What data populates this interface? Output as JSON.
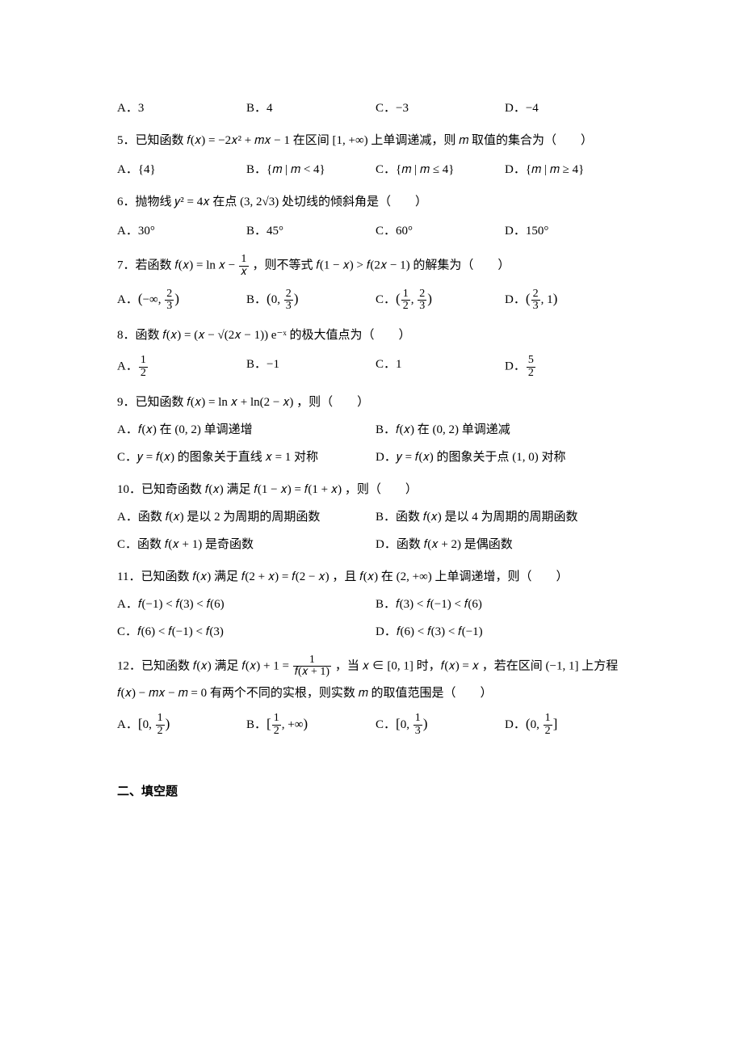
{
  "q4": {
    "A": "A．3",
    "B": "B．4",
    "C": "C．−3",
    "D": "D．−4"
  },
  "q5": {
    "stem": "5．已知函数 𝑓(𝑥) = −2𝑥² + 𝑚𝑥 − 1 在区间 [1, +∞) 上单调递减，则 𝑚 取值的集合为（　　）",
    "A": "A．{4}",
    "B": "B．{𝑚 | 𝑚 < 4}",
    "C": "C．{𝑚 | 𝑚 ≤ 4}",
    "D": "D．{𝑚 | 𝑚 ≥ 4}"
  },
  "q6": {
    "stem": "6．抛物线 𝑦² = 4𝑥 在点 (3, 2√3) 处切线的倾斜角是（　　）",
    "A": "A．30°",
    "B": "B．45°",
    "C": "C．60°",
    "D": "D．150°"
  },
  "q7": {
    "stem_prefix": "7．若函数 𝑓(𝑥) = ln 𝑥 − ",
    "stem_suffix": " ，则不等式 𝑓(1 − 𝑥) > 𝑓(2𝑥 − 1) 的解集为（　　）",
    "frac_num": "1",
    "frac_den": "𝑥",
    "A_pre": "A．",
    "A_a": "−∞",
    "A_b_num": "2",
    "A_b_den": "3",
    "B_pre": "B．",
    "B_a": "0",
    "B_b_num": "2",
    "B_b_den": "3",
    "C_pre": "C．",
    "C_a_num": "1",
    "C_a_den": "2",
    "C_b_num": "2",
    "C_b_den": "3",
    "D_pre": "D．",
    "D_a_num": "2",
    "D_a_den": "3",
    "D_b": "1"
  },
  "q8": {
    "stem": "8．函数 𝑓(𝑥) = (𝑥 − √(2𝑥 − 1)) e⁻ˣ 的极大值点为（　　）",
    "A_pre": "A．",
    "A_num": "1",
    "A_den": "2",
    "B": "B．−1",
    "C": "C．1",
    "D_pre": "D．",
    "D_num": "5",
    "D_den": "2"
  },
  "q9": {
    "stem": "9．已知函数 𝑓(𝑥) = ln 𝑥 + ln(2 − 𝑥) ，则（　　）",
    "A": "A．𝑓(𝑥) 在 (0, 2) 单调递增",
    "B": "B．𝑓(𝑥) 在 (0, 2) 单调递减",
    "C": "C．𝑦 = 𝑓(𝑥) 的图象关于直线 𝑥 = 1 对称",
    "D": "D．𝑦 = 𝑓(𝑥) 的图象关于点 (1, 0) 对称"
  },
  "q10": {
    "stem": "10．已知奇函数 𝑓(𝑥) 满足 𝑓(1 − 𝑥) = 𝑓(1 + 𝑥) ，则（　　）",
    "A": "A．函数 𝑓(𝑥) 是以 2 为周期的周期函数",
    "B": "B．函数 𝑓(𝑥) 是以 4 为周期的周期函数",
    "C": "C．函数 𝑓(𝑥 + 1) 是奇函数",
    "D": "D．函数 𝑓(𝑥 + 2) 是偶函数"
  },
  "q11": {
    "stem": "11．已知函数 𝑓(𝑥) 满足 𝑓(2 + 𝑥) = 𝑓(2 − 𝑥) ，且 𝑓(𝑥) 在 (2, +∞) 上单调递增，则（　　）",
    "A": "A．𝑓(−1) < 𝑓(3) < 𝑓(6)",
    "B": "B．𝑓(3) < 𝑓(−1) < 𝑓(6)",
    "C": "C．𝑓(6) < 𝑓(−1) < 𝑓(3)",
    "D": "D．𝑓(6) < 𝑓(3) < 𝑓(−1)"
  },
  "q12": {
    "stem_prefix": "12．已知函数 𝑓(𝑥) 满足 𝑓(𝑥) + 1 = ",
    "frac_num": "1",
    "frac_den": "𝑓(𝑥 + 1)",
    "stem_suffix": " ，当 𝑥 ∈ [0, 1] 时，𝑓(𝑥) = 𝑥 ，若在区间 (−1, 1] 上方程",
    "stem_line2": "𝑓(𝑥) − 𝑚𝑥 − 𝑚 = 0 有两个不同的实根，则实数 𝑚 的取值范围是（　　）",
    "A_pre": "A．",
    "A_a": "0",
    "A_b_num": "1",
    "A_b_den": "2",
    "B_pre": "B．",
    "B_a_num": "1",
    "B_a_den": "2",
    "B_b": "+∞",
    "C_pre": "C．",
    "C_a": "0",
    "C_b_num": "1",
    "C_b_den": "3",
    "D_pre": "D．",
    "D_a": "0",
    "D_b_num": "1",
    "D_b_den": "2"
  },
  "section2": "二、填空题"
}
